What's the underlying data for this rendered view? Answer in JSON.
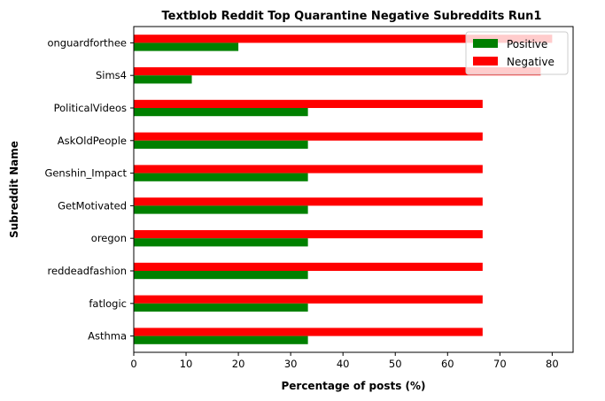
{
  "chart_data": {
    "type": "bar",
    "orientation": "horizontal",
    "title": "Textblob Reddit Top Quarantine Negative Subreddits Run1",
    "xlabel": "Percentage of posts (%)",
    "ylabel": "Subreddit Name",
    "xlim": [
      0,
      84
    ],
    "xticks": [
      0,
      10,
      20,
      30,
      40,
      50,
      60,
      70,
      80
    ],
    "categories": [
      "onguardforthee",
      "Sims4",
      "PoliticalVideos",
      "AskOldPeople",
      "Genshin_Impact",
      "GetMotivated",
      "oregon",
      "reddeadfashion",
      "fatlogic",
      "Asthma"
    ],
    "series": [
      {
        "name": "Positive",
        "color": "#008000",
        "values": [
          20.0,
          11.1,
          33.3,
          33.3,
          33.3,
          33.3,
          33.3,
          33.3,
          33.3,
          33.3
        ]
      },
      {
        "name": "Negative",
        "color": "#ff0000",
        "values": [
          80.0,
          77.8,
          66.7,
          66.7,
          66.7,
          66.7,
          66.7,
          66.7,
          66.7,
          66.7
        ]
      }
    ],
    "legend_position": "top-right",
    "grid": false
  }
}
